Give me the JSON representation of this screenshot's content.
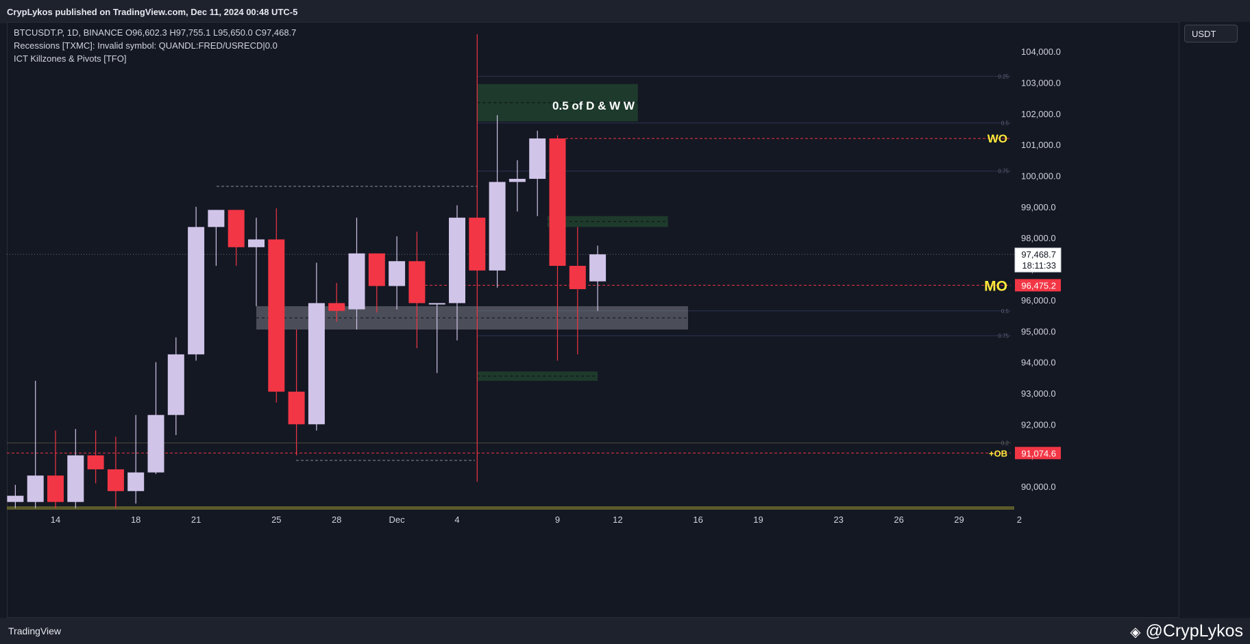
{
  "header": {
    "publisher_text": "CrypLykos published on TradingView.com, Dec 11, 2024 00:48 UTC-5"
  },
  "legend": {
    "symbol_line": "BTCUSDT.P, 1D, BINANCE  O96,602.3  H97,755.1  L95,650.0  C97,468.7",
    "indicator_1": "Recessions [TXMC]: Invalid symbol: QUANDL:FRED/USRECD|0.0",
    "indicator_2": "ICT Killzones & Pivots [TFO]"
  },
  "price_axis": {
    "currency": "USDT",
    "current_price": "97,468.7",
    "countdown": "18:11:33",
    "mo_price": "96,475.2",
    "ob_price": "91,074.6"
  },
  "footer": {
    "brand": "TradingView",
    "watermark": "@CrypLykos"
  },
  "colors": {
    "bull": "#d1c4e9",
    "bear": "#f23645",
    "zone_green": "#1e3a2c",
    "zone_grey": "#5d606b",
    "label_yellow": "#ffeb3b",
    "background": "#141823"
  },
  "chart_data": {
    "type": "candlestick",
    "title": "",
    "ylim": [
      89300,
      105600
    ],
    "yticks": [
      90000,
      91000,
      92000,
      93000,
      94000,
      95000,
      96000,
      97000,
      98000,
      99000,
      100000,
      101000,
      102000,
      103000,
      104000
    ],
    "ytick_labels": [
      "90,000.0",
      "91,000.0",
      "92,000.0",
      "93,000.0",
      "94,000.0",
      "95,000.0",
      "96,000.0",
      "97,000.0",
      "98,000.0",
      "99,000.0",
      "100,000.0",
      "101,000.0",
      "102,000.0",
      "103,000.0",
      "104,000.0"
    ],
    "xticks": [
      {
        "label": "14",
        "day": 0
      },
      {
        "label": "18",
        "day": 4
      },
      {
        "label": "21",
        "day": 7
      },
      {
        "label": "25",
        "day": 11
      },
      {
        "label": "28",
        "day": 14
      },
      {
        "label": "Dec",
        "day": 17
      },
      {
        "label": "4",
        "day": 20
      },
      {
        "label": "9",
        "day": 25
      },
      {
        "label": "12",
        "day": 28
      },
      {
        "label": "16",
        "day": 32
      },
      {
        "label": "19",
        "day": 35
      },
      {
        "label": "23",
        "day": 39
      },
      {
        "label": "26",
        "day": 42
      },
      {
        "label": "29",
        "day": 45
      },
      {
        "label": "2",
        "day": 48
      }
    ],
    "candles": [
      {
        "day": -2,
        "o": 89500,
        "h": 90050,
        "l": 89300,
        "c": 89700
      },
      {
        "day": -1,
        "o": 89500,
        "h": 93400,
        "l": 89300,
        "c": 90350
      },
      {
        "day": 0,
        "o": 90350,
        "h": 91800,
        "l": 89300,
        "c": 89500
      },
      {
        "day": 1,
        "o": 89500,
        "h": 91850,
        "l": 89300,
        "c": 91000
      },
      {
        "day": 2,
        "o": 91000,
        "h": 91800,
        "l": 90100,
        "c": 90550
      },
      {
        "day": 3,
        "o": 90550,
        "h": 91600,
        "l": 89300,
        "c": 89850
      },
      {
        "day": 4,
        "o": 89850,
        "h": 92300,
        "l": 89450,
        "c": 90450
      },
      {
        "day": 5,
        "o": 90450,
        "h": 94000,
        "l": 90400,
        "c": 92300
      },
      {
        "day": 6,
        "o": 92300,
        "h": 94800,
        "l": 91650,
        "c": 94250
      },
      {
        "day": 7,
        "o": 94250,
        "h": 99000,
        "l": 94050,
        "c": 98350
      },
      {
        "day": 8,
        "o": 98350,
        "h": 98900,
        "l": 97100,
        "c": 98900
      },
      {
        "day": 9,
        "o": 98900,
        "h": 98900,
        "l": 97100,
        "c": 97700
      },
      {
        "day": 10,
        "o": 97700,
        "h": 98650,
        "l": 95800,
        "c": 97950
      },
      {
        "day": 11,
        "o": 97950,
        "h": 98950,
        "l": 92700,
        "c": 93050
      },
      {
        "day": 12,
        "o": 93050,
        "h": 95050,
        "l": 91000,
        "c": 92000
      },
      {
        "day": 13,
        "o": 92000,
        "h": 97200,
        "l": 91800,
        "c": 95900
      },
      {
        "day": 14,
        "o": 95900,
        "h": 96550,
        "l": 95300,
        "c": 95650
      },
      {
        "day": 15,
        "o": 95700,
        "h": 98650,
        "l": 95050,
        "c": 97500
      },
      {
        "day": 16,
        "o": 97500,
        "h": 97500,
        "l": 95600,
        "c": 96450
      },
      {
        "day": 17,
        "o": 96450,
        "h": 98050,
        "l": 95700,
        "c": 97250
      },
      {
        "day": 18,
        "o": 97250,
        "h": 98200,
        "l": 94450,
        "c": 95900
      },
      {
        "day": 19,
        "o": 95900,
        "h": 95900,
        "l": 93650,
        "c": 95900
      },
      {
        "day": 20,
        "o": 95900,
        "h": 99050,
        "l": 94700,
        "c": 98650
      },
      {
        "day": 21,
        "o": 98650,
        "h": 104550,
        "l": 90150,
        "c": 96950
      },
      {
        "day": 22,
        "o": 96950,
        "h": 101950,
        "l": 96400,
        "c": 99800
      },
      {
        "day": 23,
        "o": 99800,
        "h": 100500,
        "l": 98850,
        "c": 99900
      },
      {
        "day": 24,
        "o": 99900,
        "h": 101450,
        "l": 98700,
        "c": 101200
      },
      {
        "day": 25,
        "o": 101200,
        "h": 101300,
        "l": 94050,
        "c": 97100
      },
      {
        "day": 26,
        "o": 97100,
        "h": 98350,
        "l": 94250,
        "c": 96350
      },
      {
        "day": 27,
        "o": 96600,
        "h": 97750,
        "l": 95650,
        "c": 97470
      }
    ],
    "horizontal_levels": [
      {
        "name": "WO",
        "price": 101200,
        "style": "dashed",
        "color": "#f23645"
      },
      {
        "name": "MO",
        "price": 96475.2,
        "style": "dashed",
        "color": "#f23645"
      },
      {
        "name": "+OB",
        "price": 91074.6,
        "style": "dashed",
        "color": "#f23645"
      },
      {
        "name": "0.25",
        "price": 103200
      },
      {
        "name": "0.5",
        "price": 101700
      },
      {
        "name": "0.75",
        "price": 100150
      },
      {
        "name": "0.5",
        "price": 95650
      },
      {
        "name": "0.75",
        "price": 94850
      },
      {
        "name": "0.2",
        "price": 91400
      }
    ],
    "zones": [
      {
        "label": "0.5 of D & W W",
        "day_from": 21,
        "day_to": 29,
        "low": 101750,
        "high": 102950,
        "color": "green"
      },
      {
        "label": "",
        "day_from": 24.5,
        "day_to": 30.5,
        "low": 98350,
        "high": 98700,
        "color": "green"
      },
      {
        "label": "",
        "day_from": 21,
        "day_to": 27,
        "low": 93400,
        "high": 93700,
        "color": "green"
      },
      {
        "label": "",
        "day_from": 10,
        "day_to": 31.5,
        "low": 95050,
        "high": 95800,
        "color": "grey"
      }
    ],
    "annotations": [
      {
        "text": "WO",
        "price": 101200
      },
      {
        "text": "MO",
        "price": 96475.2
      },
      {
        "text": "+OB",
        "price": 91074.6
      },
      {
        "text": "0.5 of D & W W",
        "price": 102300
      }
    ]
  }
}
